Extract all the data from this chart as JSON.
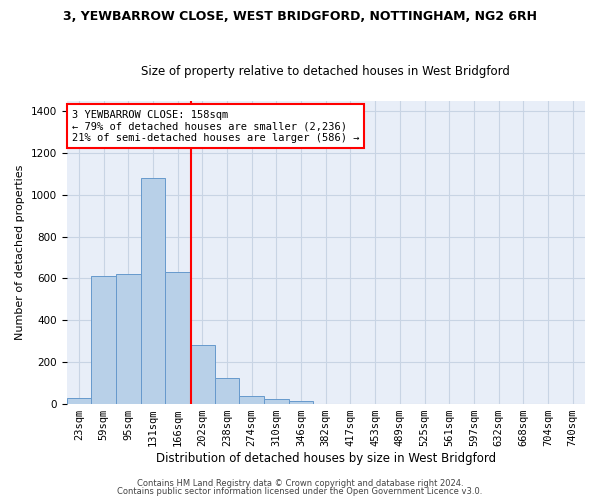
{
  "title": "3, YEWBARROW CLOSE, WEST BRIDGFORD, NOTTINGHAM, NG2 6RH",
  "subtitle": "Size of property relative to detached houses in West Bridgford",
  "xlabel": "Distribution of detached houses by size in West Bridgford",
  "ylabel": "Number of detached properties",
  "bin_labels": [
    "23sqm",
    "59sqm",
    "95sqm",
    "131sqm",
    "166sqm",
    "202sqm",
    "238sqm",
    "274sqm",
    "310sqm",
    "346sqm",
    "382sqm",
    "417sqm",
    "453sqm",
    "489sqm",
    "525sqm",
    "561sqm",
    "597sqm",
    "632sqm",
    "668sqm",
    "704sqm",
    "740sqm"
  ],
  "bar_heights": [
    30,
    610,
    620,
    1080,
    630,
    280,
    125,
    40,
    25,
    15,
    0,
    0,
    0,
    0,
    0,
    0,
    0,
    0,
    0,
    0,
    0
  ],
  "bar_color": "#b8d0e8",
  "bar_edge_color": "#6699cc",
  "grid_color": "#c8d4e4",
  "bg_color": "#e8eef8",
  "vline_x": 4.55,
  "vline_color": "red",
  "annotation_text": "3 YEWBARROW CLOSE: 158sqm\n← 79% of detached houses are smaller (2,236)\n21% of semi-detached houses are larger (586) →",
  "annotation_box_color": "red",
  "footer_line1": "Contains HM Land Registry data © Crown copyright and database right 2024.",
  "footer_line2": "Contains public sector information licensed under the Open Government Licence v3.0.",
  "ylim": [
    0,
    1450
  ],
  "yticks": [
    0,
    200,
    400,
    600,
    800,
    1000,
    1200,
    1400
  ],
  "title_fontsize": 9,
  "subtitle_fontsize": 8.5,
  "xlabel_fontsize": 8.5,
  "ylabel_fontsize": 8,
  "tick_fontsize": 7.5,
  "annotation_fontsize": 7.5,
  "footer_fontsize": 6
}
